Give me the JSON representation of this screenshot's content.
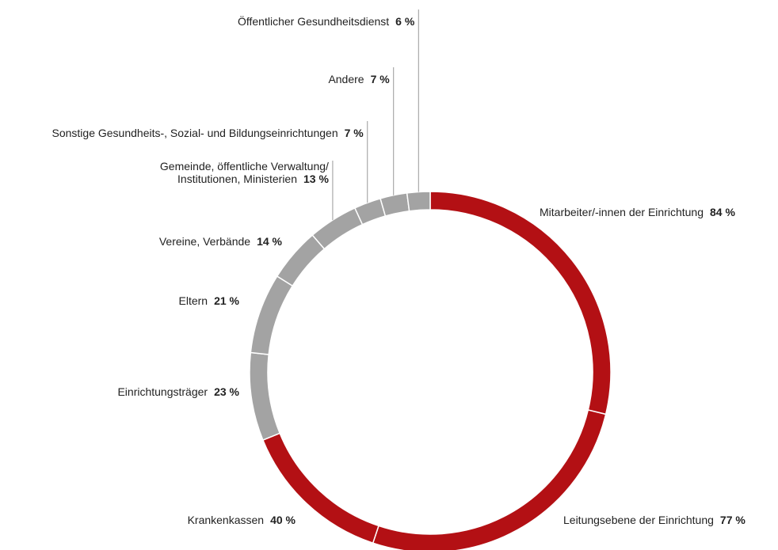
{
  "chart_data": {
    "type": "donut",
    "categories": [
      "Mitarbeiter/-innen der Einrichtung",
      "Leitungsebene der Einrichtung",
      "Krankenkassen",
      "Einrichtungsträger",
      "Eltern",
      "Vereine, Verbände",
      "Gemeinde, öffentliche Verwaltung/\nInstitutionen, Ministerien",
      "Sonstige Gesundheits-, Sozial- und Bildungseinrichtungen",
      "Andere",
      "Öffentlicher Gesundheitsdienst"
    ],
    "values": [
      84,
      77,
      40,
      23,
      21,
      14,
      13,
      7,
      7,
      6
    ],
    "value_labels": [
      "84 %",
      "77 %",
      "40 %",
      "23 %",
      "21 %",
      "14 %",
      "13 %",
      "7 %",
      "7 %",
      "6 %"
    ],
    "colors": [
      "#b31014",
      "#b31014",
      "#b31014",
      "#a3a3a3",
      "#a3a3a3",
      "#a3a3a3",
      "#a3a3a3",
      "#a3a3a3",
      "#a3a3a3",
      "#a3a3a3"
    ]
  }
}
